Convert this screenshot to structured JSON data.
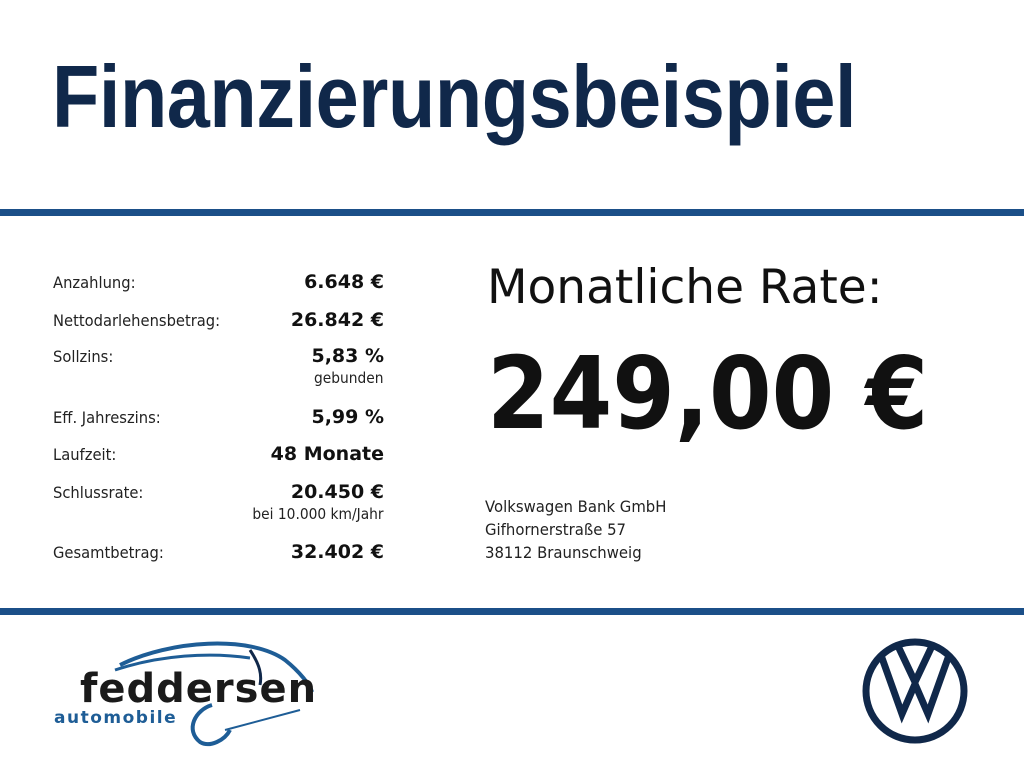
{
  "title": "Finanzierungsbeispiel",
  "details": [
    {
      "label": "Anzahlung:",
      "value": "6.648 €"
    },
    {
      "label": "Nettodarlehensbetrag:",
      "value": "26.842 €"
    },
    {
      "label": "Sollzins:",
      "value": "5,83 %",
      "note": "gebunden"
    },
    {
      "label": "Eff. Jahreszins:",
      "value": "5,99 %"
    },
    {
      "label": "Laufzeit:",
      "value": "48 Monate"
    },
    {
      "label": "Schlussrate:",
      "value": "20.450 €",
      "note": "bei 10.000 km/Jahr"
    },
    {
      "label": "Gesamtbetrag:",
      "value": "32.402 €"
    }
  ],
  "rate": {
    "label": "Monatliche Rate:",
    "value": "249,00 €"
  },
  "lender": {
    "name": "Volkswagen Bank GmbH",
    "street": "Gifhornerstraße 57",
    "city": "38112 Braunschweig"
  },
  "dealer_logo": {
    "name": "feddersen",
    "tagline": "automobile"
  },
  "brand_logo": "VW",
  "colors": {
    "title": "#10284a",
    "rule": "#1b4f88",
    "logo_blue": "#1e5d96"
  }
}
